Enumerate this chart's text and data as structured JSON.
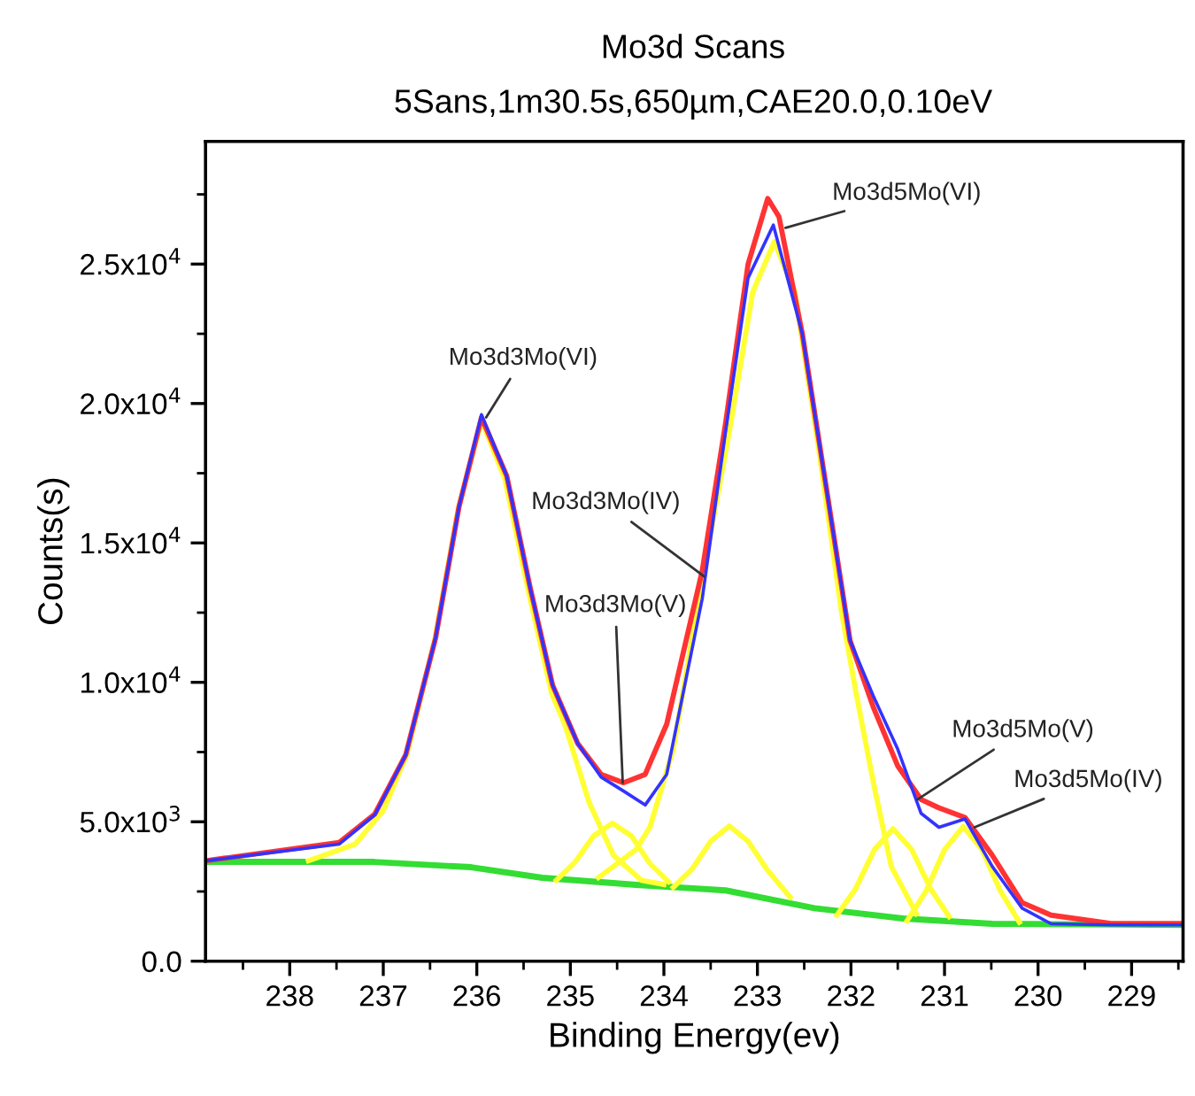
{
  "chart_data": {
    "type": "line",
    "title": "Mo3d Scans",
    "subtitle": "5Sans,1m30.5s,650µm,CAE20.0,0.10eV",
    "xlabel": "Binding Energy(ev)",
    "ylabel": "Counts(s)",
    "xlim": [
      238.9,
      228.45
    ],
    "ylim": [
      0,
      29400
    ],
    "xticks": [
      238,
      237,
      236,
      235,
      234,
      233,
      232,
      231,
      230,
      229
    ],
    "yticks": [
      {
        "value": 0,
        "label": "0.0"
      },
      {
        "value": 5000,
        "label": "5.0x10$^{3}$"
      },
      {
        "value": 10000,
        "label": "1.0x10$^{4}$"
      },
      {
        "value": 15000,
        "label": "1.5x10$^{4}$"
      },
      {
        "value": 20000,
        "label": "2.0x10$^{4}$"
      },
      {
        "value": 25000,
        "label": "2.5x10$^{4}$"
      }
    ],
    "grid": false,
    "legend": false,
    "line_style": "solid",
    "marker": "none",
    "series": [
      {
        "color": "#33dd33",
        "x": [
          238.9,
          237.1,
          236.06,
          235.3,
          234.54,
          234.3,
          233.34,
          232.39,
          231.44,
          230.49,
          228.45
        ],
        "values": [
          3560,
          3560,
          3370,
          2990,
          2800,
          2740,
          2540,
          1900,
          1530,
          1340,
          1300
        ]
      },
      {
        "color": "#ffff33",
        "x": [
          237.8,
          237.3,
          237.0,
          236.75,
          236.45,
          236.2,
          235.95,
          235.7,
          235.45,
          235.2,
          235.06,
          234.8,
          234.54,
          234.24,
          234.0
        ],
        "values": [
          3600,
          4200,
          5400,
          7400,
          11500,
          16200,
          19400,
          17300,
          13300,
          9600,
          8500,
          5700,
          3800,
          2900,
          2750
        ]
      },
      {
        "color": "#ffff33",
        "x": [
          235.15,
          234.95,
          234.75,
          234.55,
          234.35,
          234.15,
          233.95
        ],
        "values": [
          2900,
          3550,
          4500,
          4950,
          4500,
          3500,
          2850
        ]
      },
      {
        "color": "#ffff33",
        "x": [
          233.9,
          233.7,
          233.5,
          233.3,
          233.1,
          232.9,
          232.65
        ],
        "values": [
          2650,
          3300,
          4300,
          4850,
          4300,
          3300,
          2300
        ]
      },
      {
        "color": "#ffff33",
        "x": [
          234.7,
          234.3,
          234.15,
          233.9,
          233.6,
          233.3,
          233.05,
          232.82,
          232.6,
          232.35,
          232.1,
          231.95,
          231.76,
          231.57,
          231.3
        ],
        "values": [
          3000,
          4000,
          4800,
          7600,
          13500,
          19000,
          24000,
          25800,
          24000,
          18500,
          12500,
          9700,
          6400,
          3400,
          1700
        ]
      },
      {
        "color": "#ffff33",
        "x": [
          232.15,
          231.95,
          231.75,
          231.55,
          231.35,
          231.15,
          230.95
        ],
        "values": [
          1650,
          2600,
          4000,
          4750,
          4000,
          2600,
          1600
        ]
      },
      {
        "color": "#ffff33",
        "x": [
          231.4,
          231.2,
          231.0,
          230.8,
          230.6,
          230.4,
          230.2
        ],
        "values": [
          1450,
          2500,
          4000,
          4830,
          4000,
          2500,
          1400
        ]
      },
      {
        "color": "#ff3333",
        "x": [
          238.9,
          237.47,
          237.09,
          236.76,
          236.44,
          236.19,
          235.95,
          235.68,
          235.43,
          235.19,
          234.92,
          234.67,
          234.43,
          234.2,
          233.97,
          233.59,
          233.34,
          233.1,
          232.89,
          232.77,
          232.52,
          232.26,
          232.01,
          231.76,
          231.5,
          231.25,
          231.06,
          230.78,
          230.49,
          230.17,
          229.86,
          229.22,
          228.45
        ],
        "values": [
          3600,
          4260,
          5280,
          7400,
          11600,
          16300,
          19500,
          17400,
          13400,
          9900,
          7800,
          6700,
          6400,
          6700,
          8500,
          14000,
          19300,
          25000,
          27350,
          26700,
          22500,
          16900,
          11500,
          9100,
          7000,
          5800,
          5500,
          5150,
          3800,
          2100,
          1650,
          1350,
          1350
        ]
      },
      {
        "color": "#3333ff",
        "x": [
          238.9,
          237.47,
          237.09,
          236.76,
          236.44,
          236.19,
          235.95,
          235.68,
          235.43,
          235.19,
          234.92,
          234.67,
          234.43,
          234.2,
          233.97,
          233.59,
          233.34,
          233.1,
          232.83,
          232.52,
          232.26,
          232.01,
          231.76,
          231.5,
          231.25,
          231.06,
          230.78,
          230.49,
          230.17,
          229.86,
          229.22,
          228.45
        ],
        "values": [
          3600,
          4200,
          5250,
          7400,
          11600,
          16300,
          19600,
          17400,
          13400,
          9900,
          7800,
          6600,
          6100,
          5600,
          6700,
          13000,
          19000,
          24500,
          26400,
          22500,
          16900,
          11500,
          9500,
          7600,
          5300,
          4800,
          5100,
          3400,
          1900,
          1340,
          1300,
          1300
        ]
      }
    ],
    "annotations": [
      {
        "text": "Mo3d3Mo(VI)",
        "x": 235.9,
        "y": 19500
      },
      {
        "text": "Mo3d5Mo(VI)",
        "x": 232.7,
        "y": 26300
      },
      {
        "text": "Mo3d3Mo(IV)",
        "x": 233.57,
        "y": 13800
      },
      {
        "text": "Mo3d3Mo(V)",
        "x": 234.44,
        "y": 6400
      },
      {
        "text": "Mo3d5Mo(V)",
        "x": 231.29,
        "y": 5800
      },
      {
        "text": "Mo3d5Mo(IV)",
        "x": 230.68,
        "y": 4800
      }
    ]
  }
}
